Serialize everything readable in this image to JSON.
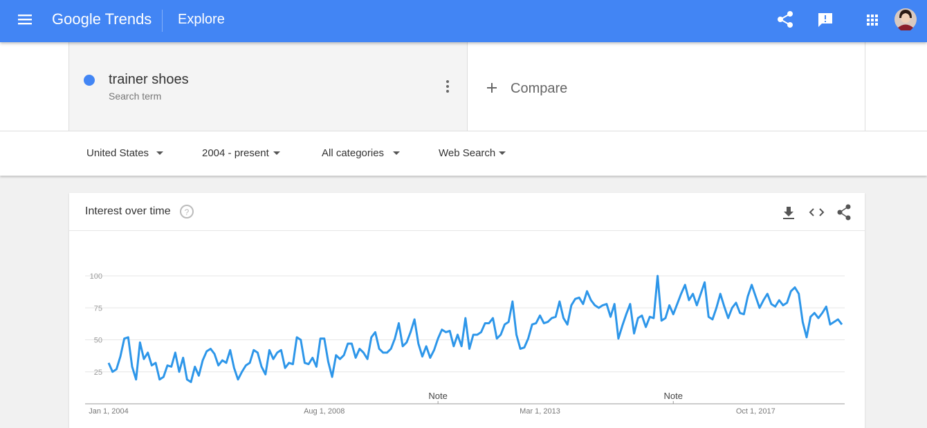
{
  "header": {
    "logo": "Google Trends",
    "page": "Explore"
  },
  "search": {
    "term_type": "Search term",
    "compare": "Compare"
  },
  "filters": [
    "United States",
    "2004 - present",
    "All categories",
    "Web Search"
  ],
  "chart_data": {
    "type": "line",
    "title": "Interest over time",
    "categories": [
      "Jan 1, 2004",
      null,
      null,
      null,
      null,
      null,
      null,
      null,
      null,
      null,
      null,
      null,
      null,
      null,
      null,
      null,
      null,
      null,
      null,
      null,
      null,
      null,
      null,
      null,
      null,
      null,
      null,
      null,
      null,
      null,
      null,
      null,
      null,
      null,
      null,
      null,
      null,
      null,
      null,
      null,
      null,
      null,
      null,
      null,
      null,
      null,
      null,
      null,
      null,
      null,
      null,
      null,
      null,
      null,
      null,
      "Aug 1, 2008",
      null,
      null,
      null,
      null,
      null,
      null,
      null,
      null,
      null,
      null,
      null,
      null,
      null,
      null,
      null,
      null,
      null,
      null,
      null,
      null,
      null,
      null,
      null,
      null,
      null,
      null,
      null,
      null,
      null,
      null,
      null,
      null,
      null,
      null,
      null,
      null,
      null,
      null,
      null,
      null,
      null,
      null,
      null,
      null,
      null,
      null,
      null,
      null,
      null,
      null,
      null,
      null,
      null,
      null,
      "Mar 1, 2013",
      null,
      null,
      null,
      null,
      null,
      null,
      null,
      null,
      null,
      null,
      null,
      null,
      null,
      null,
      null,
      null,
      null,
      null,
      null,
      null,
      null,
      null,
      null,
      null,
      null,
      null,
      null,
      null,
      null,
      null,
      null,
      null,
      null,
      null,
      null,
      null,
      null,
      null,
      null,
      null,
      null,
      null,
      null,
      null,
      null,
      null,
      null,
      null,
      null,
      null,
      null,
      null,
      null,
      null,
      "Oct 1, 2017",
      null,
      null,
      null,
      null,
      null,
      null,
      null,
      null,
      null,
      null,
      null,
      null,
      null,
      null,
      null,
      null,
      null,
      null,
      null,
      null,
      null,
      null
    ],
    "series": [
      {
        "name": "trainer shoes",
        "color": "#2d96e9",
        "values": [
          32,
          25,
          27,
          37,
          51,
          52,
          29,
          19,
          48,
          35,
          40,
          30,
          32,
          19,
          21,
          30,
          29,
          40,
          25,
          36,
          19,
          17,
          29,
          22,
          34,
          41,
          43,
          39,
          30,
          34,
          32,
          42,
          28,
          19,
          25,
          30,
          32,
          42,
          40,
          29,
          23,
          42,
          35,
          40,
          42,
          28,
          32,
          31,
          52,
          50,
          32,
          31,
          36,
          29,
          51,
          51,
          33,
          21,
          38,
          35,
          38,
          47,
          47,
          36,
          43,
          40,
          35,
          52,
          56,
          43,
          40,
          40,
          43,
          51,
          63,
          45,
          48,
          56,
          66,
          47,
          37,
          45,
          36,
          42,
          51,
          58,
          56,
          57,
          45,
          54,
          45,
          67,
          43,
          54,
          54,
          56,
          63,
          63,
          67,
          51,
          54,
          62,
          64,
          80,
          54,
          43,
          44,
          51,
          62,
          63,
          69,
          63,
          64,
          67,
          68,
          80,
          67,
          62,
          77,
          82,
          83,
          78,
          88,
          81,
          77,
          75,
          77,
          78,
          68,
          78,
          51,
          61,
          70,
          78,
          55,
          67,
          69,
          60,
          68,
          67,
          100,
          65,
          67,
          77,
          70,
          78,
          86,
          93,
          81,
          86,
          77,
          86,
          95,
          68,
          66,
          75,
          86,
          76,
          67,
          75,
          79,
          71,
          70,
          84,
          93,
          84,
          75,
          81,
          86,
          78,
          76,
          81,
          77,
          79,
          88,
          91,
          86,
          64,
          52,
          68,
          71,
          67,
          71,
          76,
          62,
          64,
          66,
          62
        ]
      }
    ],
    "ylim": [
      0,
      100
    ],
    "yticks": [
      25,
      50,
      75,
      100
    ],
    "grid": true,
    "annotations": [
      {
        "text": "Note",
        "index": 84
      },
      {
        "text": "Note",
        "index": 144
      }
    ]
  }
}
